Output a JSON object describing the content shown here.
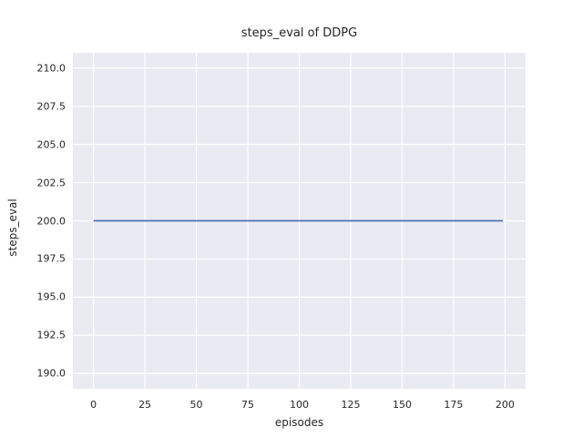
{
  "chart_data": {
    "type": "line",
    "title": "steps_eval of DDPG",
    "xlabel": "episodes",
    "ylabel": "steps_eval",
    "xlim": [
      -10,
      210
    ],
    "ylim": [
      189,
      211
    ],
    "x_ticks": [
      0,
      25,
      50,
      75,
      100,
      125,
      150,
      175,
      200
    ],
    "x_tick_labels": [
      "0",
      "25",
      "50",
      "75",
      "100",
      "125",
      "150",
      "175",
      "200"
    ],
    "y_ticks": [
      190.0,
      192.5,
      195.0,
      197.5,
      200.0,
      202.5,
      205.0,
      207.5,
      210.0
    ],
    "y_tick_labels": [
      "190.0",
      "192.5",
      "195.0",
      "197.5",
      "200.0",
      "202.5",
      "205.0",
      "207.5",
      "210.0"
    ],
    "grid": true,
    "legend_position": "none",
    "series": [
      {
        "name": "steps_eval",
        "color": "#4C72B0",
        "x": [
          0,
          199
        ],
        "y": [
          200,
          200
        ]
      }
    ],
    "styles": {
      "figure_background": "#FFFFFF",
      "axes_background": "#EAEAF2",
      "grid_color": "#FFFFFF",
      "text_color": "#262626"
    }
  }
}
